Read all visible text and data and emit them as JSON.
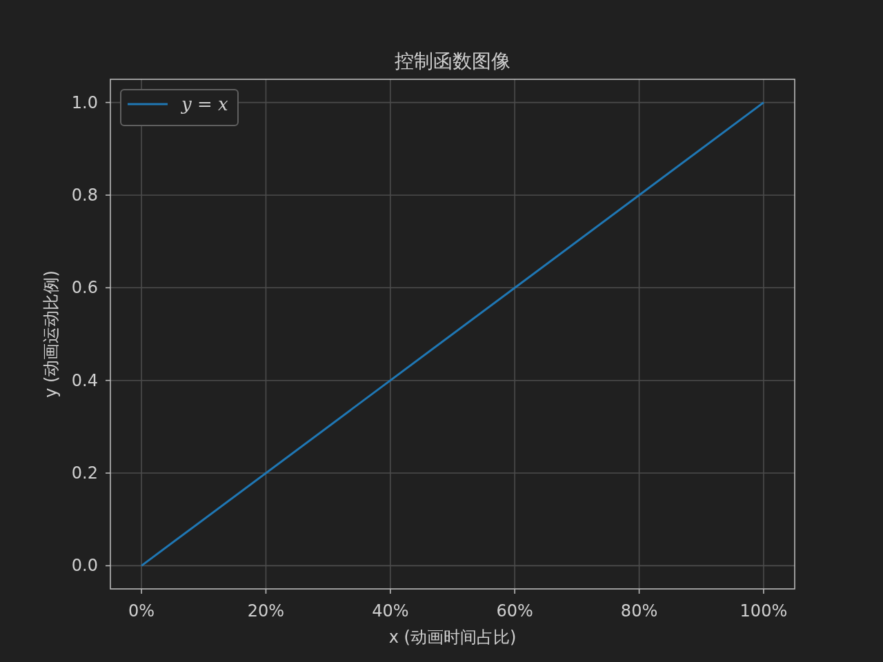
{
  "chart_data": {
    "type": "line",
    "title": "控制函数图像",
    "xlabel": "x (动画时间占比)",
    "ylabel": "y (动画运动比例)",
    "x": [
      0,
      1
    ],
    "series": [
      {
        "name": "y = x",
        "color": "#1f77b4",
        "values": [
          0,
          1
        ]
      }
    ],
    "xlim": [
      -0.05,
      1.05
    ],
    "ylim": [
      -0.05,
      1.05
    ],
    "xticks": [
      {
        "value": 0,
        "label": "0%"
      },
      {
        "value": 0.2,
        "label": "20%"
      },
      {
        "value": 0.4,
        "label": "40%"
      },
      {
        "value": 0.6,
        "label": "60%"
      },
      {
        "value": 0.8,
        "label": "80%"
      },
      {
        "value": 1,
        "label": "100%"
      }
    ],
    "yticks": [
      {
        "value": 0,
        "label": "0.0"
      },
      {
        "value": 0.2,
        "label": "0.2"
      },
      {
        "value": 0.4,
        "label": "0.4"
      },
      {
        "value": 0.6,
        "label": "0.6"
      },
      {
        "value": 0.8,
        "label": "0.8"
      },
      {
        "value": 1,
        "label": "1.0"
      }
    ],
    "grid": true,
    "legend": "top left"
  }
}
